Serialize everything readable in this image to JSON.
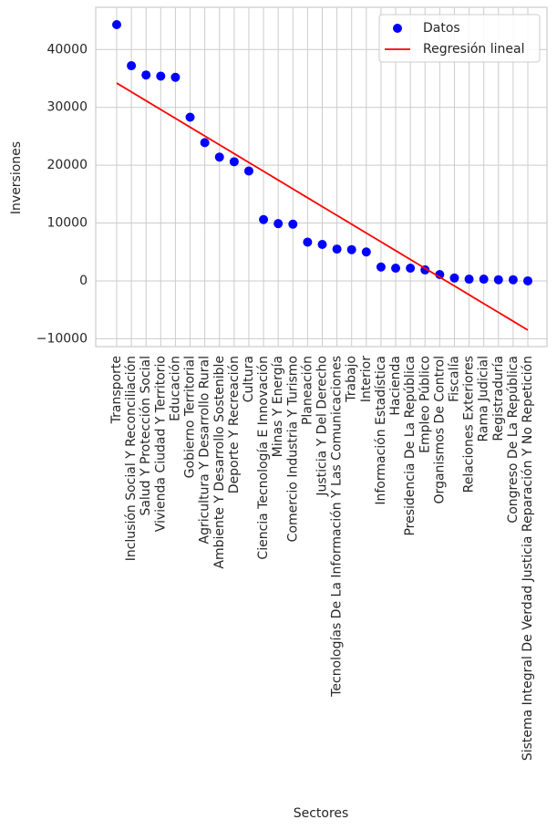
{
  "chart_data": {
    "type": "scatter",
    "x_label": "Sectores",
    "y_label": "Inversiones",
    "categories": [
      "Transporte",
      "Inclusión Social Y Reconciliación",
      "Salud Y Protección Social",
      "Vivienda Ciudad Y Territorio",
      "Educación",
      "Gobierno Territorial",
      "Agricultura Y Desarrollo Rural",
      "Ambiente Y Desarrollo Sostenible",
      "Deporte Y Recreación",
      "Cultura",
      "Ciencia Tecnología E Innovación",
      "Minas Y Energía",
      "Comercio Industria Y Turismo",
      "Planeación",
      "Justicia Y Del Derecho",
      "Tecnologías De La Información Y Las Comunicaciones",
      "Trabajo",
      "Interior",
      "Información Estadística",
      "Hacienda",
      "Presidencia De La República",
      "Empleo Público",
      "Organismos De Control",
      "Fiscalía",
      "Relaciones Exteriores",
      "Rama Judicial",
      "Registraduría",
      "Congreso De La República",
      "Sistema Integral De Verdad Justicia Reparación Y No Repetición"
    ],
    "series": [
      {
        "name": "Datos",
        "color": "#0000ff",
        "type": "scatter",
        "values": [
          44300,
          37200,
          35600,
          35400,
          35200,
          28300,
          23900,
          21400,
          20600,
          19000,
          10600,
          9900,
          9800,
          6700,
          6300,
          5500,
          5400,
          5000,
          2400,
          2200,
          2200,
          1900,
          1100,
          500,
          300,
          300,
          200,
          200,
          0
        ]
      },
      {
        "name": "Regresión lineal",
        "color": "#ff0000",
        "type": "line",
        "values": [
          34200,
          32675,
          31150,
          29625,
          28100,
          26575,
          25050,
          23525,
          22000,
          20475,
          18950,
          17425,
          15900,
          14375,
          12850,
          11325,
          9800,
          8275,
          6750,
          5225,
          3700,
          2175,
          650,
          -875,
          -2400,
          -3925,
          -5450,
          -6975,
          -8500
        ]
      }
    ],
    "ylim": [
      -11360,
      47300
    ],
    "yticks": [
      {
        "value": -10000,
        "label": "−10000"
      },
      0,
      10000,
      20000,
      30000,
      40000
    ],
    "grid": true,
    "legend": "upper right"
  }
}
